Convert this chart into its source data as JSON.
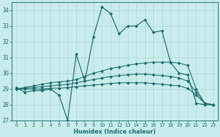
{
  "xlabel": "Humidex (Indice chaleur)",
  "background_color": "#c8ecec",
  "grid_color": "#b0d8d8",
  "line_color": "#1a6b6b",
  "xlim": [
    -0.5,
    23.5
  ],
  "ylim": [
    27,
    34.5
  ],
  "yticks": [
    27,
    28,
    29,
    30,
    31,
    32,
    33,
    34
  ],
  "xticks": [
    0,
    1,
    2,
    3,
    4,
    5,
    6,
    7,
    8,
    9,
    10,
    11,
    12,
    13,
    14,
    15,
    16,
    17,
    18,
    19,
    20,
    21,
    22,
    23
  ],
  "spiky": [
    29.1,
    28.8,
    28.9,
    28.9,
    29.0,
    28.6,
    27.0,
    31.2,
    29.5,
    32.3,
    34.2,
    33.8,
    32.5,
    33.0,
    33.0,
    33.4,
    32.6,
    32.7,
    30.7,
    30.0,
    29.9,
    28.1,
    28.0,
    28.0
  ],
  "line_upper": [
    29.0,
    29.1,
    29.2,
    29.3,
    29.4,
    29.45,
    29.5,
    29.6,
    29.8,
    30.0,
    30.15,
    30.3,
    30.4,
    30.5,
    30.6,
    30.65,
    30.7,
    30.7,
    30.7,
    30.65,
    30.5,
    29.0,
    28.1,
    28.0
  ],
  "line_middle": [
    29.0,
    29.05,
    29.1,
    29.15,
    29.2,
    29.25,
    29.3,
    29.4,
    29.5,
    29.6,
    29.7,
    29.8,
    29.85,
    29.9,
    29.95,
    29.95,
    29.9,
    29.85,
    29.8,
    29.7,
    29.5,
    28.8,
    28.1,
    28.0
  ],
  "line_lower": [
    29.0,
    29.0,
    29.0,
    29.0,
    29.05,
    29.05,
    29.1,
    29.15,
    29.2,
    29.25,
    29.3,
    29.35,
    29.4,
    29.4,
    29.4,
    29.4,
    29.35,
    29.3,
    29.25,
    29.2,
    29.05,
    28.6,
    28.1,
    28.0
  ]
}
